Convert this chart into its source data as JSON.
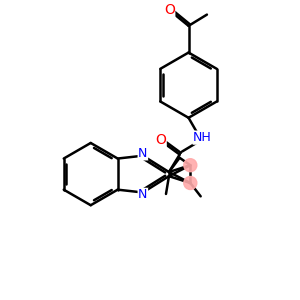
{
  "bg_color": "#ffffff",
  "bond_color": "#000000",
  "bond_width": 1.8,
  "N_color": "#0000ff",
  "O_color": "#ff0000",
  "pink_color": "#ffaaaa",
  "figsize": [
    3.0,
    3.0
  ],
  "dpi": 100,
  "xlim": [
    0,
    10
  ],
  "ylim": [
    0,
    10
  ]
}
